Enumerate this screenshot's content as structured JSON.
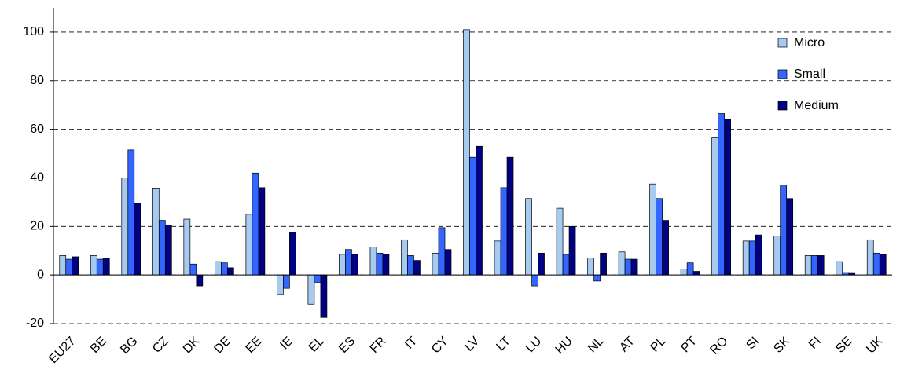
{
  "chart_data": {
    "type": "bar",
    "categories": [
      "EU27",
      "BE",
      "BG",
      "CZ",
      "DK",
      "DE",
      "EE",
      "IE",
      "EL",
      "ES",
      "FR",
      "IT",
      "CY",
      "LV",
      "LT",
      "LU",
      "HU",
      "NL",
      "AT",
      "PL",
      "PT",
      "RO",
      "SI",
      "SK",
      "FI",
      "SE",
      "UK"
    ],
    "series": [
      {
        "name": "Micro",
        "color": "#a6caf0",
        "values": [
          8,
          8,
          40,
          35.5,
          23,
          5.5,
          25,
          -8,
          -12,
          8.5,
          11.5,
          14.5,
          9,
          101,
          14,
          31.5,
          27.5,
          7,
          9.5,
          37.5,
          2.5,
          56.5,
          14,
          16,
          8,
          5.5,
          14.5
        ]
      },
      {
        "name": "Small",
        "color": "#3366ff",
        "values": [
          6.5,
          6.5,
          51.5,
          22.5,
          4.5,
          5,
          42,
          -5.5,
          -3,
          10.5,
          9,
          8,
          19.5,
          48.5,
          36,
          -4.5,
          8.5,
          -2.5,
          6.5,
          31.5,
          5,
          66.5,
          14,
          37,
          8,
          1,
          9
        ]
      },
      {
        "name": "Medium",
        "color": "#000080",
        "values": [
          7.5,
          7,
          29.5,
          20.5,
          -4.5,
          3,
          36,
          17.5,
          -17.5,
          8.5,
          8.5,
          6,
          10.5,
          53,
          48.5,
          9,
          20,
          9,
          6.5,
          22.5,
          1.5,
          64,
          16.5,
          31.5,
          8,
          1,
          8.5
        ]
      }
    ],
    "ylim": [
      -20,
      110
    ],
    "yticks": [
      -20,
      0,
      20,
      40,
      60,
      80,
      100
    ],
    "grid": true,
    "legend": "upper right"
  }
}
